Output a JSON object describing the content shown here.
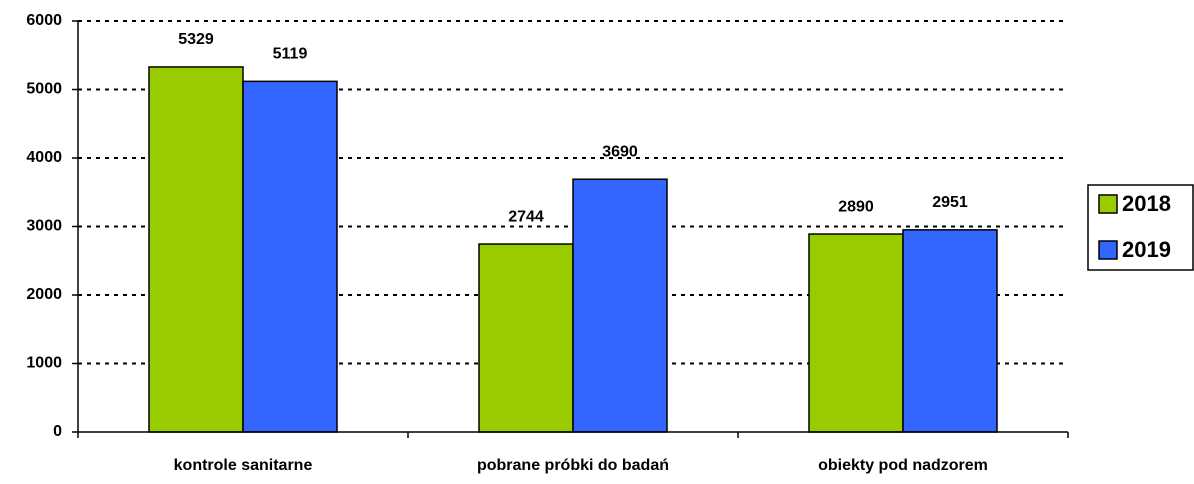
{
  "chart_data": {
    "type": "bar",
    "categories": [
      "kontrole sanitarne",
      "pobrane próbki do badań",
      "obiekty pod nadzorem"
    ],
    "series": [
      {
        "name": "2018",
        "color": "#99cc00",
        "values": [
          5329,
          2744,
          2890
        ]
      },
      {
        "name": "2019",
        "color": "#3366ff",
        "values": [
          5119,
          3690,
          2951
        ]
      }
    ],
    "ylim": [
      0,
      6000
    ],
    "yticks": [
      0,
      1000,
      2000,
      3000,
      4000,
      5000,
      6000
    ],
    "grid": true,
    "legend": "right"
  }
}
